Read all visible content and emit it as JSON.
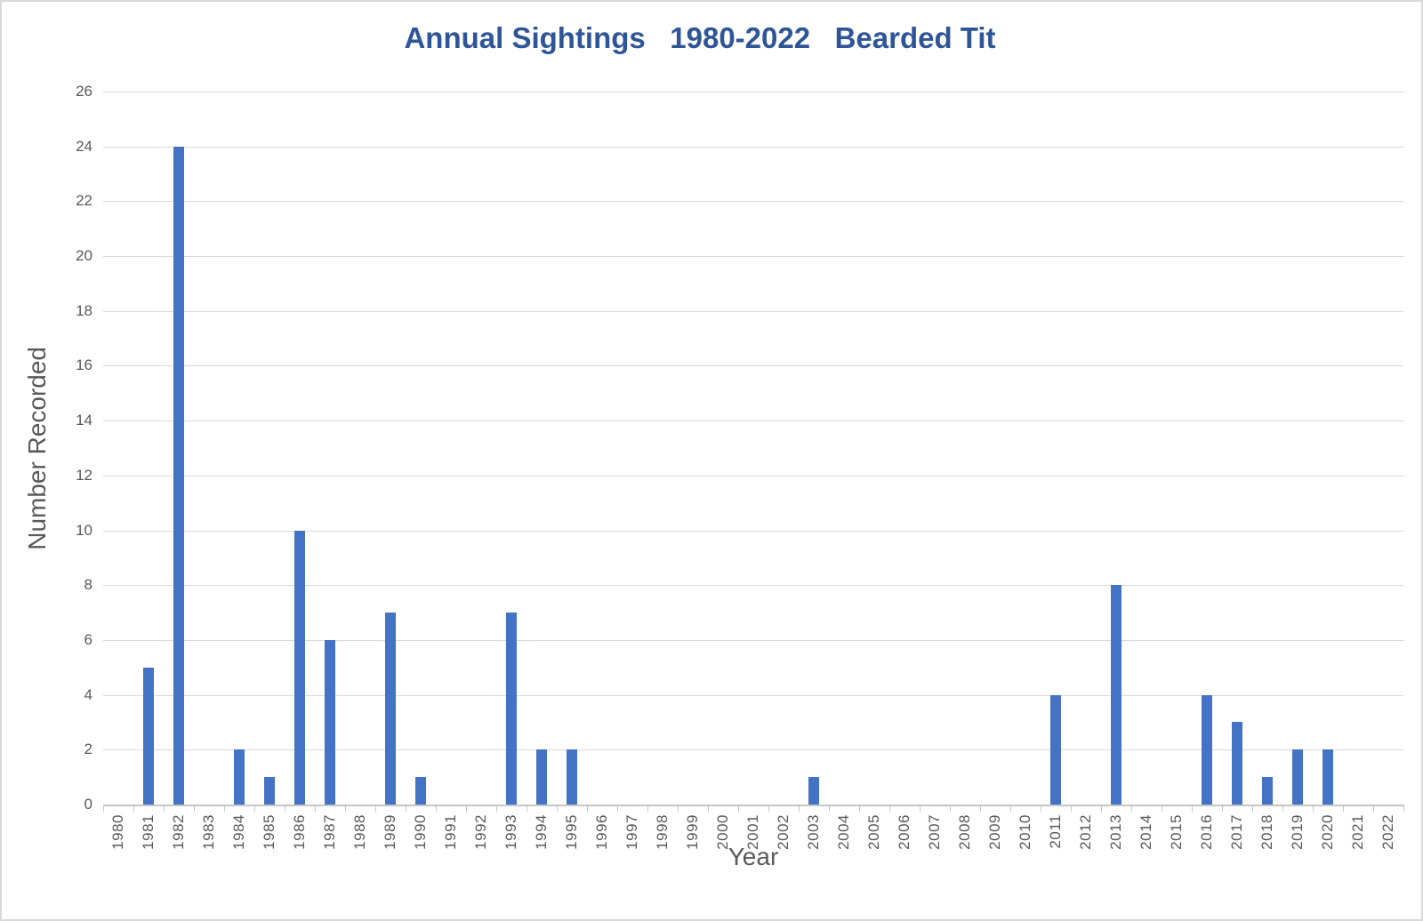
{
  "chart_data": {
    "type": "bar",
    "title": "Annual Sightings   1980-2022   Bearded Tit",
    "xlabel": "Year",
    "ylabel": "Number Recorded",
    "categories": [
      "1980",
      "1981",
      "1982",
      "1983",
      "1984",
      "1985",
      "1986",
      "1987",
      "1988",
      "1989",
      "1990",
      "1991",
      "1992",
      "1993",
      "1994",
      "1995",
      "1996",
      "1997",
      "1998",
      "1999",
      "2000",
      "2001",
      "2002",
      "2003",
      "2004",
      "2005",
      "2006",
      "2007",
      "2008",
      "2009",
      "2010",
      "2011",
      "2012",
      "2013",
      "2014",
      "2015",
      "2016",
      "2017",
      "2018",
      "2019",
      "2020",
      "2021",
      "2022"
    ],
    "values": [
      0,
      5,
      24,
      0,
      2,
      1,
      10,
      6,
      0,
      7,
      1,
      0,
      0,
      7,
      2,
      2,
      0,
      0,
      0,
      0,
      0,
      0,
      0,
      1,
      0,
      0,
      0,
      0,
      0,
      0,
      0,
      4,
      0,
      8,
      0,
      0,
      4,
      3,
      1,
      2,
      2,
      0,
      0
    ],
    "ylim": [
      0,
      26
    ],
    "y_ticks": [
      0,
      2,
      4,
      6,
      8,
      10,
      12,
      14,
      16,
      18,
      20,
      22,
      24,
      26
    ],
    "grid": true,
    "legend": "none",
    "colors": {
      "bar": "#4472C4",
      "title": "#2E5597",
      "axis_text": "#595959",
      "gridline": "#D9D9D9",
      "axis_line": "#C6C6C6",
      "background": "#FFFFFF",
      "border": "#D9D9D9"
    }
  }
}
